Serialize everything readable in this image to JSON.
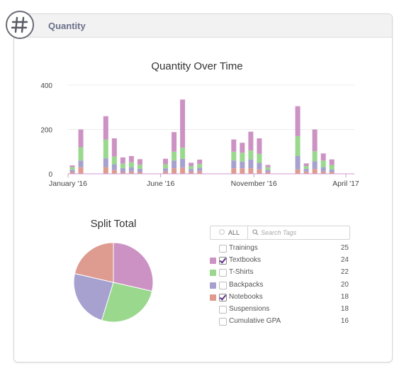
{
  "header": {
    "title": "Quantity",
    "icon": "hash-icon"
  },
  "colors": {
    "Textbooks": "#cd92c4",
    "T-Shirts": "#9ad88e",
    "Backpacks": "#a6a1cf",
    "Notebooks": "#de9b8f",
    "axis_purple": "#d29ad0",
    "hash_ring": "#6b6b78"
  },
  "chart_data": [
    {
      "type": "bar",
      "stacked": true,
      "title": "Quantity Over Time",
      "xlabel": "",
      "ylabel": "",
      "ylim": [
        0,
        400
      ],
      "yticks": [
        0,
        200,
        400
      ],
      "x_tick_labels": [
        "January '16",
        "June '16",
        "November '16",
        "April '17"
      ],
      "x_tick_dates": [
        "2016-01-01",
        "2016-06-01",
        "2016-11-01",
        "2017-04-01"
      ],
      "x_range": [
        "2016-01-01",
        "2017-04-15"
      ],
      "grid": true,
      "series_order": [
        "Notebooks",
        "Backpacks",
        "T-Shirts",
        "Textbooks"
      ],
      "bars": [
        {
          "date": "2016-01-08",
          "values": [
            8,
            10,
            12,
            8
          ]
        },
        {
          "date": "2016-01-22",
          "values": [
            30,
            30,
            60,
            80
          ]
        },
        {
          "date": "2016-03-03",
          "values": [
            30,
            40,
            85,
            105
          ]
        },
        {
          "date": "2016-03-17",
          "values": [
            18,
            25,
            35,
            82
          ]
        },
        {
          "date": "2016-03-31",
          "values": [
            8,
            18,
            20,
            28
          ]
        },
        {
          "date": "2016-04-14",
          "values": [
            10,
            20,
            22,
            28
          ]
        },
        {
          "date": "2016-04-28",
          "values": [
            8,
            15,
            18,
            25
          ]
        },
        {
          "date": "2016-06-09",
          "values": [
            10,
            15,
            18,
            25
          ]
        },
        {
          "date": "2016-06-23",
          "values": [
            25,
            35,
            40,
            88
          ]
        },
        {
          "date": "2016-07-07",
          "values": [
            28,
            40,
            50,
            217
          ]
        },
        {
          "date": "2016-07-21",
          "values": [
            10,
            12,
            13,
            15
          ]
        },
        {
          "date": "2016-08-04",
          "values": [
            12,
            15,
            17,
            20
          ]
        },
        {
          "date": "2016-09-29",
          "values": [
            25,
            35,
            40,
            55
          ]
        },
        {
          "date": "2016-10-13",
          "values": [
            25,
            30,
            40,
            45
          ]
        },
        {
          "date": "2016-10-27",
          "values": [
            25,
            40,
            40,
            85
          ]
        },
        {
          "date": "2016-11-10",
          "values": [
            20,
            30,
            40,
            70
          ]
        },
        {
          "date": "2016-11-24",
          "values": [
            8,
            10,
            12,
            10
          ]
        },
        {
          "date": "2017-01-12",
          "values": [
            20,
            60,
            90,
            135
          ]
        },
        {
          "date": "2017-01-26",
          "values": [
            10,
            12,
            13,
            12
          ]
        },
        {
          "date": "2017-02-09",
          "values": [
            22,
            35,
            45,
            98
          ]
        },
        {
          "date": "2017-02-23",
          "values": [
            10,
            20,
            30,
            32
          ]
        },
        {
          "date": "2017-03-09",
          "values": [
            8,
            12,
            20,
            25
          ]
        }
      ]
    },
    {
      "type": "pie",
      "title": "Split Total",
      "slices": [
        {
          "label": "Textbooks",
          "value": 24
        },
        {
          "label": "T-Shirts",
          "value": 22
        },
        {
          "label": "Backpacks",
          "value": 20
        },
        {
          "label": "Notebooks",
          "value": 18
        }
      ]
    }
  ],
  "filter": {
    "all_label": "ALL",
    "search_placeholder": "Search Tags"
  },
  "tags": [
    {
      "label": "Trainings",
      "count": "25",
      "checked": false,
      "color": ""
    },
    {
      "label": "Textbooks",
      "count": "24",
      "checked": true,
      "color": "#cd92c4"
    },
    {
      "label": "T-Shirts",
      "count": "22",
      "checked": false,
      "color": "#9ad88e"
    },
    {
      "label": "Backpacks",
      "count": "20",
      "checked": false,
      "color": "#a6a1cf"
    },
    {
      "label": "Notebooks",
      "count": "18",
      "checked": true,
      "color": "#de9b8f"
    },
    {
      "label": "Suspensions",
      "count": "18",
      "checked": false,
      "color": ""
    },
    {
      "label": "Cumulative GPA",
      "count": "16",
      "checked": false,
      "color": ""
    }
  ]
}
